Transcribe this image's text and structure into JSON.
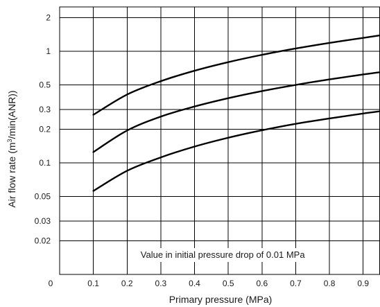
{
  "chart_data": {
    "type": "line",
    "title": "",
    "xlabel": "Primary pressure (MPa)",
    "ylabel_parts": {
      "before": "Air flow rate (m",
      "sup": "3",
      "after": "/min(ANR))"
    },
    "y_scale": "log",
    "grid": true,
    "legend": "none",
    "xlim": [
      0,
      0.95
    ],
    "ylim": [
      0.01,
      2.5
    ],
    "x_ticks": [
      0,
      0.1,
      0.2,
      0.3,
      0.4,
      0.5,
      0.6,
      0.7,
      0.8,
      0.9
    ],
    "x_tick_labels": [
      "0",
      "0.1",
      "0.2",
      "0.3",
      "0.4",
      "0.5",
      "0.6",
      "0.7",
      "0.8",
      "0.9"
    ],
    "y_ticks": [
      0.02,
      0.03,
      0.05,
      0.1,
      0.2,
      0.3,
      0.5,
      1,
      2
    ],
    "y_tick_labels": [
      "0.02",
      "0.03",
      "0.05",
      "0.1",
      "0.2",
      "0.3",
      "0.5",
      "1",
      "2"
    ],
    "annotation": "Value in initial pressure drop of 0.01 MPa",
    "series": [
      {
        "x": [
          0.1,
          0.2,
          0.3,
          0.4,
          0.5,
          0.6,
          0.7,
          0.8,
          0.9,
          0.95
        ],
        "values": [
          0.27,
          0.41,
          0.54,
          0.67,
          0.8,
          0.93,
          1.06,
          1.19,
          1.32,
          1.39
        ]
      },
      {
        "x": [
          0.1,
          0.2,
          0.3,
          0.4,
          0.5,
          0.6,
          0.7,
          0.8,
          0.9,
          0.95
        ],
        "values": [
          0.125,
          0.195,
          0.26,
          0.32,
          0.38,
          0.44,
          0.5,
          0.56,
          0.62,
          0.65
        ]
      },
      {
        "x": [
          0.1,
          0.2,
          0.3,
          0.4,
          0.5,
          0.6,
          0.7,
          0.8,
          0.9,
          0.95
        ],
        "values": [
          0.056,
          0.085,
          0.112,
          0.14,
          0.168,
          0.196,
          0.224,
          0.25,
          0.277,
          0.29
        ]
      }
    ]
  }
}
